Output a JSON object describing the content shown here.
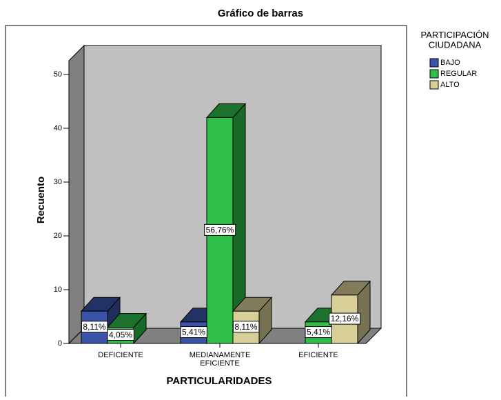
{
  "chart_data": {
    "type": "bar3d",
    "title": "Gráfico de barras",
    "x_label": "PARTICULARIDADES",
    "y_label": "Recuento",
    "legend_title": "PARTICIPACIÓN CIUDADANA",
    "categories": [
      "DEFICIENTE",
      "MEDIANAMENTE EFICIENTE",
      "EFICIENTE"
    ],
    "series": [
      {
        "name": "BAJO",
        "color": "#3b53a9",
        "values": [
          6,
          4,
          null
        ],
        "value_labels": [
          "8,11%",
          "5,41%",
          null
        ]
      },
      {
        "name": "REGULAR",
        "color": "#2fbe4a",
        "values": [
          3,
          42,
          4
        ],
        "value_labels": [
          "4,05%",
          "56,76%",
          "5,41%"
        ]
      },
      {
        "name": "ALTO",
        "color": "#d8cf98",
        "values": [
          null,
          6,
          9
        ],
        "value_labels": [
          null,
          "8,11%",
          "12,16%"
        ]
      }
    ],
    "ylim": [
      0,
      50
    ],
    "yticks": [
      0,
      10,
      20,
      30,
      40,
      50
    ]
  }
}
